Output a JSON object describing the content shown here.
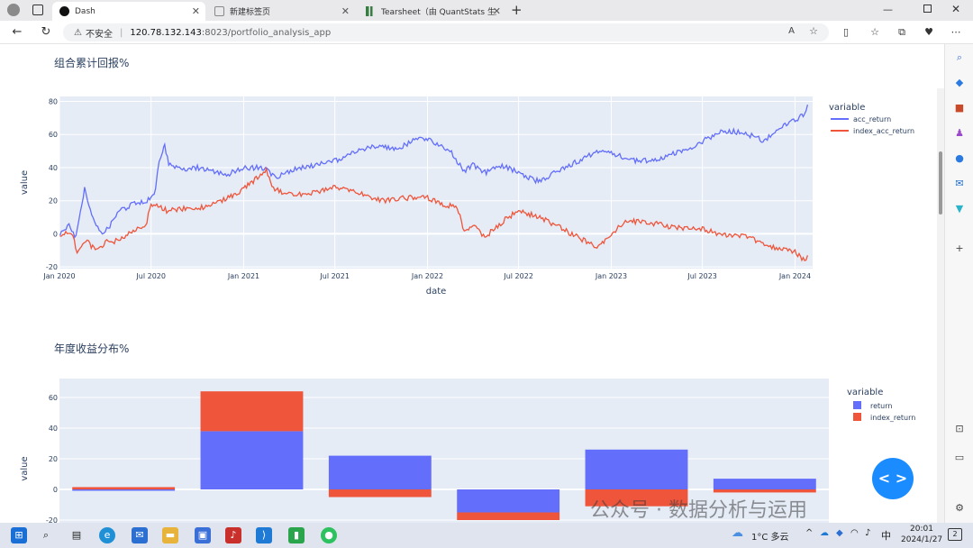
{
  "browser": {
    "tabs": [
      {
        "label": "Dash",
        "active": true,
        "icon_color": "#111111"
      },
      {
        "label": "新建标签页",
        "active": false,
        "icon_color": "#888888"
      },
      {
        "label": "Tearsheet（由 QuantStats 生成）",
        "active": false,
        "icon_color": "#3a7d44"
      }
    ],
    "new_tab": "+",
    "security_label": "不安全",
    "url_host": "120.78.132.143",
    "url_path": ":8023/portfolio_analysis_app"
  },
  "chart1": {
    "title": "组合累计回报%",
    "legend_title": "variable",
    "xlabel": "date",
    "ylabel": "value"
  },
  "chart2": {
    "title": "年度收益分布%",
    "legend_title": "variable",
    "ylabel": "value"
  },
  "chart_data": [
    {
      "type": "line",
      "title": "组合累计回报%",
      "xlabel": "date",
      "ylabel": "value",
      "x_ticks": [
        "Jan 2020",
        "Jul 2020",
        "Jan 2021",
        "Jul 2021",
        "Jan 2022",
        "Jul 2022",
        "Jan 2023",
        "Jul 2023",
        "Jan 2024"
      ],
      "y_ticks": [
        -20,
        0,
        20,
        40,
        60,
        80
      ],
      "ylim": [
        -21,
        83
      ],
      "grid": true,
      "legend_placement": "top-right",
      "series": [
        {
          "name": "acc_return",
          "color": "#636efa",
          "points": [
            [
              "2020-01-02",
              0
            ],
            [
              "2020-01-20",
              5
            ],
            [
              "2020-02-03",
              -2
            ],
            [
              "2020-02-20",
              27
            ],
            [
              "2020-03-05",
              12
            ],
            [
              "2020-03-23",
              0
            ],
            [
              "2020-04-10",
              5
            ],
            [
              "2020-05-01",
              14
            ],
            [
              "2020-06-01",
              19
            ],
            [
              "2020-06-20",
              20
            ],
            [
              "2020-07-01",
              21
            ],
            [
              "2020-07-10",
              27
            ],
            [
              "2020-07-17",
              44
            ],
            [
              "2020-07-24",
              50
            ],
            [
              "2020-07-28",
              54
            ],
            [
              "2020-08-05",
              42
            ],
            [
              "2020-09-01",
              38
            ],
            [
              "2020-10-01",
              40
            ],
            [
              "2020-11-01",
              38
            ],
            [
              "2020-12-01",
              36
            ],
            [
              "2021-01-01",
              40
            ],
            [
              "2021-02-10",
              40
            ],
            [
              "2021-03-05",
              34
            ],
            [
              "2021-04-01",
              38
            ],
            [
              "2021-05-01",
              40
            ],
            [
              "2021-06-01",
              42
            ],
            [
              "2021-07-01",
              44
            ],
            [
              "2021-08-01",
              48
            ],
            [
              "2021-09-01",
              52
            ],
            [
              "2021-10-01",
              53
            ],
            [
              "2021-11-01",
              51
            ],
            [
              "2021-12-15",
              58
            ],
            [
              "2022-01-01",
              57
            ],
            [
              "2022-01-20",
              54
            ],
            [
              "2022-02-15",
              50
            ],
            [
              "2022-03-15",
              38
            ],
            [
              "2022-04-01",
              42
            ],
            [
              "2022-04-25",
              37
            ],
            [
              "2022-06-01",
              41
            ],
            [
              "2022-07-01",
              37
            ],
            [
              "2022-08-01",
              32
            ],
            [
              "2022-08-20",
              33
            ],
            [
              "2022-09-15",
              38
            ],
            [
              "2022-10-15",
              42
            ],
            [
              "2022-11-15",
              47
            ],
            [
              "2022-12-15",
              50
            ],
            [
              "2023-01-01",
              49
            ],
            [
              "2023-02-01",
              45
            ],
            [
              "2023-03-01",
              44
            ],
            [
              "2023-04-01",
              45
            ],
            [
              "2023-05-01",
              48
            ],
            [
              "2023-06-01",
              51
            ],
            [
              "2023-07-01",
              56
            ],
            [
              "2023-08-01",
              61
            ],
            [
              "2023-09-01",
              62
            ],
            [
              "2023-10-01",
              60
            ],
            [
              "2023-11-01",
              56
            ],
            [
              "2023-12-01",
              64
            ],
            [
              "2024-01-01",
              69
            ],
            [
              "2024-01-20",
              72
            ],
            [
              "2024-01-26",
              78
            ]
          ]
        },
        {
          "name": "index_acc_return",
          "color": "#ef553b",
          "points": [
            [
              "2020-01-02",
              0
            ],
            [
              "2020-01-25",
              0
            ],
            [
              "2020-02-05",
              -10
            ],
            [
              "2020-02-25",
              -5
            ],
            [
              "2020-03-15",
              -10
            ],
            [
              "2020-04-01",
              -5
            ],
            [
              "2020-05-01",
              -4
            ],
            [
              "2020-06-01",
              3
            ],
            [
              "2020-06-20",
              5
            ],
            [
              "2020-07-01",
              17
            ],
            [
              "2020-07-15",
              17
            ],
            [
              "2020-08-01",
              14
            ],
            [
              "2020-09-01",
              15
            ],
            [
              "2020-10-01",
              15
            ],
            [
              "2020-11-01",
              18
            ],
            [
              "2020-12-01",
              22
            ],
            [
              "2021-01-01",
              27
            ],
            [
              "2021-01-20",
              32
            ],
            [
              "2021-02-15",
              38
            ],
            [
              "2021-03-01",
              27
            ],
            [
              "2021-04-01",
              24
            ],
            [
              "2021-05-01",
              24
            ],
            [
              "2021-06-01",
              26
            ],
            [
              "2021-07-01",
              28
            ],
            [
              "2021-08-01",
              26
            ],
            [
              "2021-09-01",
              23
            ],
            [
              "2021-10-01",
              20
            ],
            [
              "2021-11-01",
              21
            ],
            [
              "2021-12-01",
              22
            ],
            [
              "2022-01-01",
              22
            ],
            [
              "2022-02-01",
              18
            ],
            [
              "2022-03-01",
              16
            ],
            [
              "2022-03-15",
              2
            ],
            [
              "2022-04-01",
              5
            ],
            [
              "2022-04-25",
              -2
            ],
            [
              "2022-06-01",
              8
            ],
            [
              "2022-07-01",
              14
            ],
            [
              "2022-08-01",
              11
            ],
            [
              "2022-09-01",
              7
            ],
            [
              "2022-10-01",
              2
            ],
            [
              "2022-11-01",
              -3
            ],
            [
              "2022-12-01",
              -8
            ],
            [
              "2022-12-20",
              -4
            ],
            [
              "2023-01-01",
              0
            ],
            [
              "2023-02-01",
              8
            ],
            [
              "2023-03-01",
              7
            ],
            [
              "2023-04-01",
              6
            ],
            [
              "2023-05-01",
              4
            ],
            [
              "2023-06-01",
              3
            ],
            [
              "2023-07-01",
              3
            ],
            [
              "2023-08-01",
              0
            ],
            [
              "2023-09-01",
              -1
            ],
            [
              "2023-10-01",
              -2
            ],
            [
              "2023-11-01",
              -6
            ],
            [
              "2023-12-01",
              -9
            ],
            [
              "2024-01-01",
              -11
            ],
            [
              "2024-01-20",
              -16
            ],
            [
              "2024-01-26",
              -13
            ]
          ]
        }
      ]
    },
    {
      "type": "bar",
      "title": "年度收益分布%",
      "ylabel": "value",
      "barmode": "relative",
      "y_ticks": [
        -20,
        0,
        20,
        40,
        60
      ],
      "ylim": [
        -20,
        70
      ],
      "grid": true,
      "legend_placement": "top-right",
      "series": [
        {
          "name": "return",
          "color": "#636efa",
          "values": [
            0,
            38,
            22,
            -15,
            26,
            7
          ]
        },
        {
          "name": "index_return",
          "color": "#ef553b",
          "values": [
            1.5,
            26,
            -5,
            -5,
            -11,
            -2
          ]
        }
      ]
    }
  ],
  "sidebar": {
    "icons": [
      "search-icon",
      "tag-icon",
      "toolbox-icon",
      "games-icon",
      "office-icon",
      "outlook-icon",
      "drop-icon",
      "add-icon",
      "screenshot-icon",
      "split-icon",
      "settings-icon"
    ]
  },
  "fab_label": "< >",
  "watermark": "公众号 · 数据分析与运用",
  "taskbar": {
    "weather": "1°C 多云",
    "ime": "中",
    "time": "20:01",
    "date": "2024/1/27",
    "notifications": "2"
  }
}
